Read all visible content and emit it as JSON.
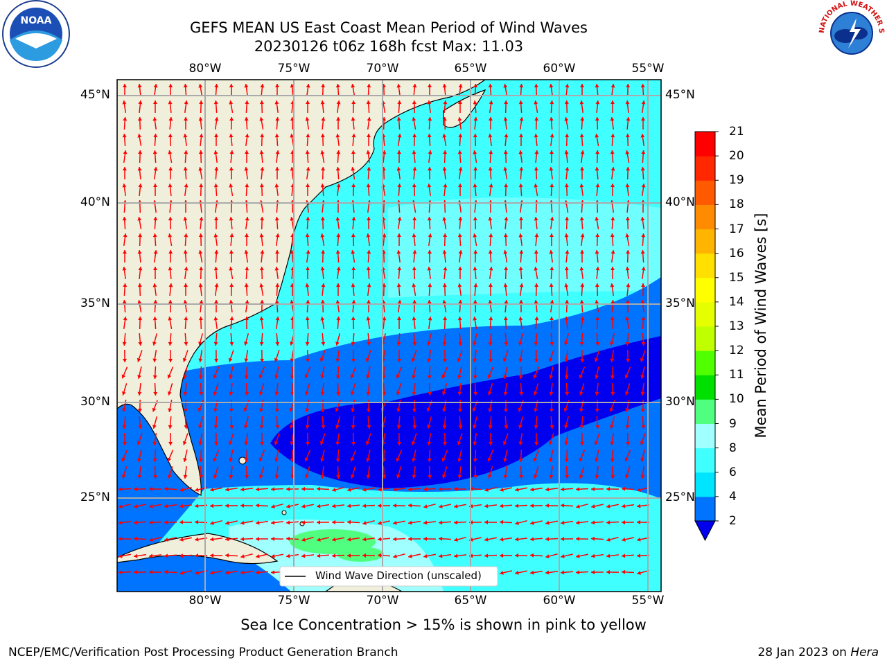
{
  "title_line1": "GEFS MEAN US East Coast Mean Period of Wind Waves",
  "title_line2": "20230126 t06z 168h fcst   Max: 11.03",
  "lon_labels": [
    "80°W",
    "75°W",
    "70°W",
    "65°W",
    "60°W",
    "55°W"
  ],
  "lat_labels": [
    "45°N",
    "40°N",
    "35°N",
    "30°N",
    "25°N"
  ],
  "colorbar": {
    "label": "Mean Period of Wind Waves [s]",
    "ticks": [
      "2",
      "4",
      "6",
      "8",
      "9",
      "10",
      "11",
      "12",
      "13",
      "14",
      "15",
      "16",
      "17",
      "18",
      "19",
      "20",
      "21"
    ],
    "colors": [
      "#0073ff",
      "#00e5ff",
      "#40ffff",
      "#a0ffff",
      "#50ff80",
      "#00e000",
      "#50ff00",
      "#c0ff00",
      "#e6ff00",
      "#ffff00",
      "#ffe000",
      "#ffb400",
      "#ff8c00",
      "#ff5a00",
      "#ff2800",
      "#ff0000"
    ],
    "under_color": "#0000ee"
  },
  "legend_label": "Wind Wave Direction (unscaled)",
  "footer_note": "Sea Ice Concentration > 15% is shown in pink to yellow",
  "footer_left": "NCEP/EMC/Verification Post Processing Product Generation Branch",
  "footer_date": "28 Jan 2023 on",
  "footer_host": "Hera",
  "logos": {
    "left_text": "NOAA",
    "right_text": "NATIONAL WEATHER SERVICE"
  }
}
